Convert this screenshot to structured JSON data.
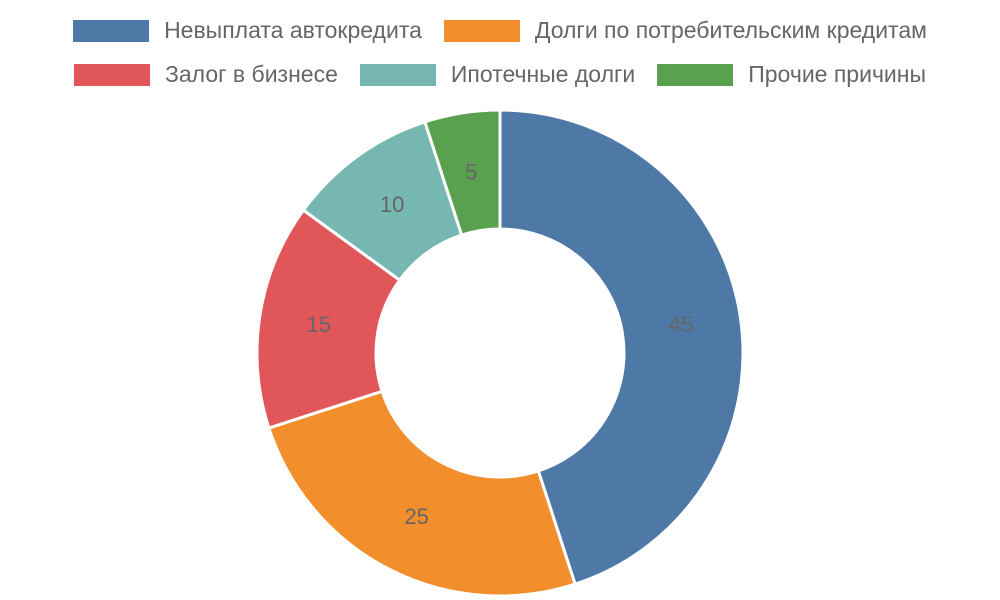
{
  "chart_data": {
    "type": "pie",
    "variant": "doughnut",
    "title": "",
    "legend_position": "top",
    "categories": [
      "Невыплата автокредита",
      "Долги по потребительским кредитам",
      "Залог в бизнесе",
      "Ипотечные долги",
      "Прочие причины"
    ],
    "values": [
      45,
      25,
      15,
      10,
      5
    ],
    "colors": [
      "#4e79a7",
      "#f28e2b",
      "#e15759",
      "#76b7b2",
      "#59a14f"
    ],
    "data_labels": [
      "45",
      "25",
      "15",
      "10",
      "5"
    ]
  }
}
